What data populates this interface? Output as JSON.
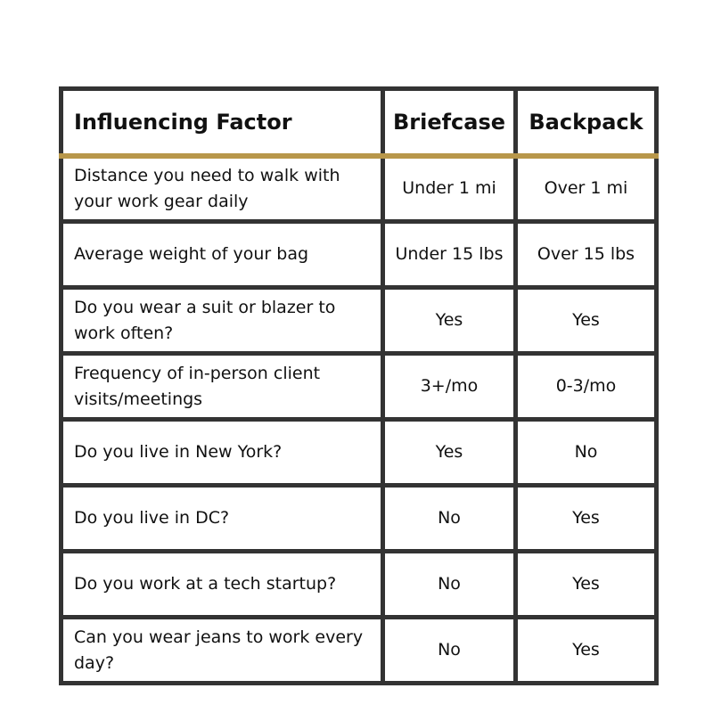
{
  "colors": {
    "accent": "#b8974a",
    "border": "#333333",
    "text": "#111111"
  },
  "header": {
    "factor": "Influencing Factor",
    "briefcase": "Briefcase",
    "backpack": "Backpack"
  },
  "rows": [
    {
      "factor": "Distance you need to walk with your work gear daily",
      "briefcase": "Under 1 mi",
      "backpack": "Over 1 mi"
    },
    {
      "factor": "Average weight of your bag",
      "briefcase": "Under 15 lbs",
      "backpack": "Over 15 lbs"
    },
    {
      "factor": "Do you wear a suit or blazer to work often?",
      "briefcase": "Yes",
      "backpack": "Yes"
    },
    {
      "factor": "Frequency of in-person client visits/meetings",
      "briefcase": "3+/mo",
      "backpack": "0-3/mo"
    },
    {
      "factor": "Do you live in New York?",
      "briefcase": "Yes",
      "backpack": "No"
    },
    {
      "factor": "Do you live in DC?",
      "briefcase": "No",
      "backpack": "Yes"
    },
    {
      "factor": "Do you work at a tech startup?",
      "briefcase": "No",
      "backpack": "Yes"
    },
    {
      "factor": "Can you wear jeans to work every day?",
      "briefcase": "No",
      "backpack": "Yes"
    }
  ]
}
